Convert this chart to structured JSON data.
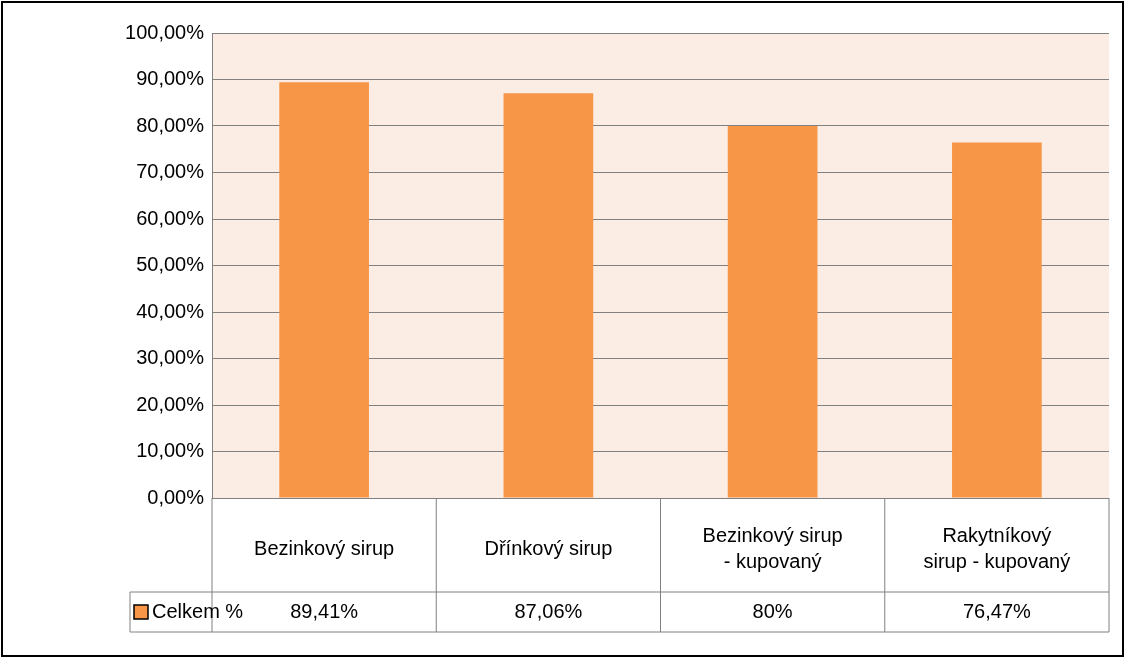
{
  "chart_data": {
    "type": "bar",
    "categories": [
      "Bezinkový sirup",
      "Dřínkový sirup",
      "Bezinkový sirup - kupovaný",
      "Rakytníkový sirup - kupovaný"
    ],
    "series": [
      {
        "name": "Celkem %",
        "color": "#f79646",
        "values": [
          89.41,
          87.06,
          80,
          76.47
        ],
        "value_labels": [
          "89,41%",
          "87,06%",
          "80%",
          "76,47%"
        ]
      }
    ],
    "ylim": [
      0,
      100
    ],
    "yticks": [
      {
        "value": 0,
        "label": "0,00%"
      },
      {
        "value": 10,
        "label": "10,00%"
      },
      {
        "value": 20,
        "label": "20,00%"
      },
      {
        "value": 30,
        "label": "30,00%"
      },
      {
        "value": 40,
        "label": "40,00%"
      },
      {
        "value": 50,
        "label": "50,00%"
      },
      {
        "value": 60,
        "label": "60,00%"
      },
      {
        "value": 70,
        "label": "70,00%"
      },
      {
        "value": 80,
        "label": "80,00%"
      },
      {
        "value": 90,
        "label": "90,00%"
      },
      {
        "value": 100,
        "label": "100,00%"
      }
    ],
    "grid": true,
    "legend": "bottom"
  }
}
